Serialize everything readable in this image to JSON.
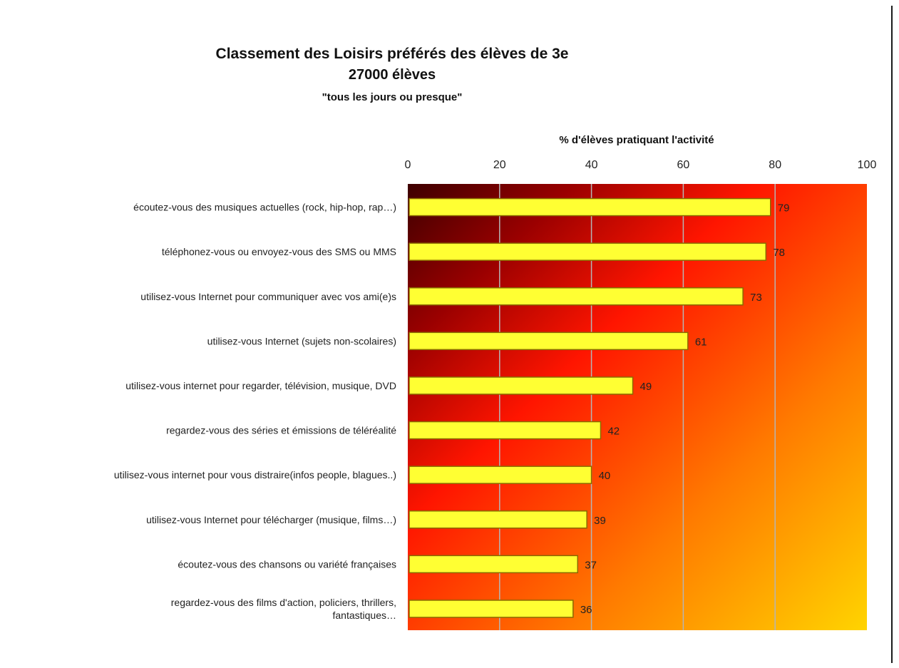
{
  "chart_data": {
    "type": "bar",
    "orientation": "horizontal",
    "title": "Classement des Loisirs préférés des élèves de 3e",
    "subtitle": "27000 élèves",
    "note": "\"tous les jours ou presque\"",
    "xlabel": "% d'élèves pratiquant l'activité",
    "xaxis_position": "top",
    "xlim": [
      0,
      100
    ],
    "xticks": [
      "0",
      "20",
      "40",
      "60",
      "80",
      "100"
    ],
    "grid": true,
    "legend": "none",
    "categories": [
      [
        "écoutez-vous des musiques actuelles (rock, hip-hop, rap…)"
      ],
      [
        "téléphonez-vous ou envoyez-vous des SMS ou MMS"
      ],
      [
        "utilisez-vous Internet pour communiquer avec vos ami(e)s"
      ],
      [
        "utilisez-vous Internet (sujets non-scolaires)"
      ],
      [
        "utilisez-vous internet pour regarder, télévision, musique, DVD"
      ],
      [
        "regardez-vous des séries et émissions de téléréalité"
      ],
      [
        "utilisez-vous internet pour vous distraire(infos people, blagues..)"
      ],
      [
        "utilisez-vous Internet pour télécharger  (musique, films…)"
      ],
      [
        "écoutez-vous des chansons ou variété françaises"
      ],
      [
        "regardez-vous des films d'action, policiers, thrillers,",
        "fantastiques…"
      ]
    ],
    "values": [
      79,
      78,
      73,
      61,
      49,
      42,
      40,
      39,
      37,
      36
    ],
    "colors": {
      "bar_fill": "#ffff33",
      "bar_stroke": "#8a6a00",
      "plot_gradient": [
        "#4a0000",
        "#a00000",
        "#ff1a00",
        "#ff7a00",
        "#ffd000"
      ],
      "grid": "#b5b5b5"
    }
  }
}
